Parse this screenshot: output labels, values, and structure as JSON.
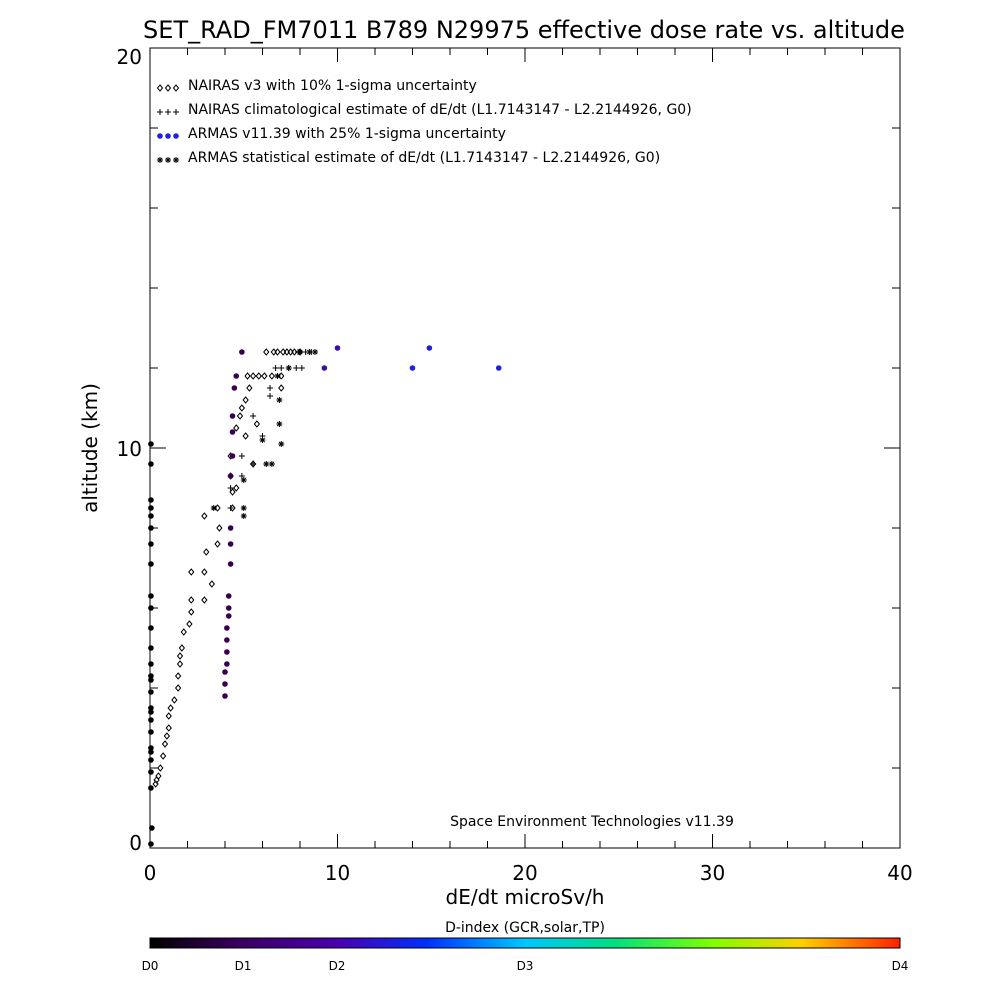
{
  "chart_data": {
    "type": "scatter",
    "title": "SET_RAD_FM7011  B789 N29975 effective dose rate vs. altitude",
    "xlabel": "dE/dt microSv/h",
    "ylabel": "altitude (km)",
    "xlim": [
      0,
      40
    ],
    "ylim": [
      0,
      20
    ],
    "x_ticks": [
      "0",
      "10",
      "20",
      "30",
      "40"
    ],
    "y_ticks": [
      "0",
      "10",
      "20"
    ],
    "legend_placement": "top-left",
    "credit": "Space Environment Technologies v11.39",
    "colorbar": {
      "title": "D-index (GCR,solar,TP)",
      "labels": [
        {
          "text": "D0",
          "value": 0
        },
        {
          "text": "D1",
          "value": 1
        },
        {
          "text": "D2",
          "value": 2
        },
        {
          "text": "D3",
          "value": 3
        },
        {
          "text": "D4",
          "value": 4
        }
      ]
    },
    "series": [
      {
        "name": "NAIRAS v3 with 10% 1-sigma uncertainty",
        "marker": "diamond",
        "color": "#000000",
        "points": [
          [
            0.3,
            1.6
          ],
          [
            0.35,
            1.7
          ],
          [
            0.45,
            1.8
          ],
          [
            0.55,
            2.0
          ],
          [
            0.7,
            2.3
          ],
          [
            0.8,
            2.6
          ],
          [
            0.9,
            2.8
          ],
          [
            1.0,
            3.0
          ],
          [
            1.0,
            3.3
          ],
          [
            1.1,
            3.5
          ],
          [
            1.3,
            3.7
          ],
          [
            1.5,
            4.0
          ],
          [
            1.5,
            4.3
          ],
          [
            1.6,
            4.6
          ],
          [
            1.6,
            4.8
          ],
          [
            1.7,
            5.0
          ],
          [
            1.8,
            5.4
          ],
          [
            2.1,
            5.6
          ],
          [
            2.2,
            5.9
          ],
          [
            2.2,
            6.2
          ],
          [
            2.9,
            6.2
          ],
          [
            3.3,
            6.6
          ],
          [
            2.2,
            6.9
          ],
          [
            2.9,
            6.9
          ],
          [
            3.0,
            7.4
          ],
          [
            3.6,
            7.6
          ],
          [
            3.7,
            8.0
          ],
          [
            2.9,
            8.3
          ],
          [
            3.6,
            8.5
          ],
          [
            4.4,
            8.5
          ],
          [
            4.4,
            8.9
          ],
          [
            4.6,
            9.0
          ],
          [
            4.3,
            9.3
          ],
          [
            5.5,
            9.6
          ],
          [
            4.3,
            9.8
          ],
          [
            5.1,
            10.3
          ],
          [
            4.6,
            10.5
          ],
          [
            5.7,
            10.6
          ],
          [
            4.8,
            10.8
          ],
          [
            4.9,
            11.0
          ],
          [
            5.1,
            11.2
          ],
          [
            5.3,
            11.5
          ],
          [
            7.0,
            11.5
          ],
          [
            5.2,
            11.8
          ],
          [
            5.5,
            11.8
          ],
          [
            5.8,
            11.8
          ],
          [
            6.1,
            11.8
          ],
          [
            6.5,
            11.8
          ],
          [
            7.0,
            11.8
          ],
          [
            6.2,
            12.4
          ],
          [
            6.6,
            12.4
          ],
          [
            6.8,
            12.4
          ],
          [
            7.1,
            12.4
          ],
          [
            7.3,
            12.4
          ],
          [
            7.5,
            12.4
          ],
          [
            7.7,
            12.4
          ],
          [
            8.0,
            12.4
          ]
        ]
      },
      {
        "name": "NAIRAS climatological estimate of dE/dt (L1.7143147 - L2.2144926, G0)",
        "marker": "plus",
        "color": "#000000",
        "points": [
          [
            4.3,
            8.5
          ],
          [
            4.3,
            9.0
          ],
          [
            4.9,
            9.3
          ],
          [
            5.5,
            9.6
          ],
          [
            4.9,
            9.8
          ],
          [
            6.0,
            10.3
          ],
          [
            5.5,
            10.8
          ],
          [
            6.4,
            11.3
          ],
          [
            6.4,
            11.5
          ],
          [
            6.7,
            12.0
          ],
          [
            7.0,
            12.0
          ],
          [
            7.4,
            12.0
          ],
          [
            7.8,
            12.0
          ],
          [
            8.1,
            12.0
          ],
          [
            7.9,
            12.4
          ],
          [
            8.3,
            12.4
          ],
          [
            8.6,
            12.4
          ]
        ]
      },
      {
        "name": "ARMAS v11.39 with 25% 1-sigma uncertainty",
        "marker": "dot",
        "color": "#2020e0",
        "points": [
          [
            0.05,
            0.1
          ],
          [
            0.1,
            0.5
          ],
          [
            0.05,
            1.5
          ],
          [
            0.05,
            1.9
          ],
          [
            0.05,
            2.2
          ],
          [
            0.05,
            2.4
          ],
          [
            0.05,
            2.5
          ],
          [
            0.05,
            2.9
          ],
          [
            0.05,
            3.2
          ],
          [
            0.05,
            3.4
          ],
          [
            0.05,
            3.5
          ],
          [
            0.05,
            3.9
          ],
          [
            0.05,
            4.2
          ],
          [
            0.05,
            4.3
          ],
          [
            0.05,
            4.6
          ],
          [
            0.05,
            5.0
          ],
          [
            0.05,
            5.5
          ],
          [
            0.05,
            6.0
          ],
          [
            0.05,
            6.3
          ],
          [
            0.05,
            7.1
          ],
          [
            0.05,
            7.6
          ],
          [
            0.05,
            8.0
          ],
          [
            0.05,
            8.3
          ],
          [
            0.05,
            8.5
          ],
          [
            0.05,
            8.7
          ],
          [
            0.05,
            9.6
          ],
          [
            0.05,
            10.1
          ],
          [
            4.0,
            3.8
          ],
          [
            4.0,
            4.1
          ],
          [
            4.0,
            4.4
          ],
          [
            4.1,
            4.6
          ],
          [
            4.1,
            4.9
          ],
          [
            4.1,
            5.2
          ],
          [
            4.1,
            5.5
          ],
          [
            4.2,
            5.8
          ],
          [
            4.2,
            6.0
          ],
          [
            4.2,
            6.3
          ],
          [
            4.3,
            7.1
          ],
          [
            4.3,
            7.6
          ],
          [
            4.3,
            8.0
          ],
          [
            4.3,
            9.3
          ],
          [
            4.4,
            9.8
          ],
          [
            4.4,
            10.4
          ],
          [
            4.4,
            10.8
          ],
          [
            4.5,
            11.5
          ],
          [
            4.6,
            11.8
          ],
          [
            4.9,
            12.4
          ],
          [
            9.3,
            12.0
          ],
          [
            10.0,
            12.5
          ],
          [
            14.0,
            12.0
          ],
          [
            14.9,
            12.5
          ],
          [
            18.6,
            12.0
          ]
        ]
      },
      {
        "name": "ARMAS statistical estimate of dE/dt (L1.7143147 - L2.2144926, G0)",
        "marker": "asterisk",
        "color": "#000000",
        "points": [
          [
            3.4,
            8.5
          ],
          [
            5.0,
            8.3
          ],
          [
            5.0,
            8.5
          ],
          [
            6.2,
            9.6
          ],
          [
            7.0,
            10.1
          ],
          [
            6.9,
            10.6
          ],
          [
            6.9,
            11.2
          ],
          [
            6.8,
            11.8
          ],
          [
            5.0,
            9.2
          ],
          [
            6.5,
            9.6
          ],
          [
            6.0,
            10.2
          ],
          [
            7.4,
            12.0
          ],
          [
            8.0,
            12.4
          ],
          [
            8.5,
            12.4
          ],
          [
            8.8,
            12.4
          ]
        ]
      }
    ]
  }
}
